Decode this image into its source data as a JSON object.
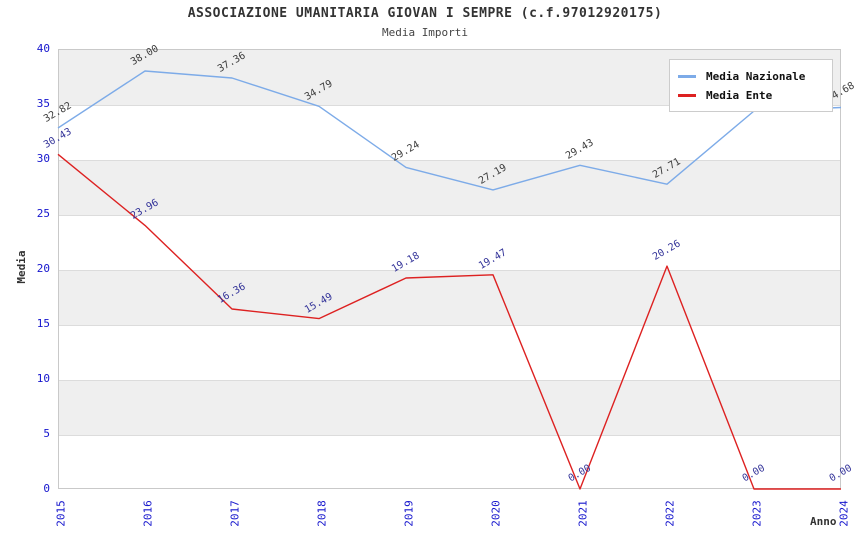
{
  "chart_data": {
    "type": "line",
    "title": "ASSOCIAZIONE UMANITARIA GIOVAN I SEMPRE (c.f.97012920175)",
    "subtitle": "Media Importi",
    "xlabel": "Anno",
    "ylabel": "Media",
    "ylim": [
      0,
      40
    ],
    "ytick_step": 5,
    "grid": "horizontal-bands-alternating-gray-white",
    "legend_position": "top-right",
    "categories": [
      "2015",
      "2016",
      "2017",
      "2018",
      "2019",
      "2020",
      "2021",
      "2022",
      "2023",
      "2024"
    ],
    "series": [
      {
        "name": "Media Nazionale",
        "color": "#7dabe8",
        "label_color": "#3c3c3c",
        "values": [
          32.82,
          38.0,
          37.36,
          34.79,
          29.24,
          27.19,
          29.43,
          27.71,
          34.36,
          34.68
        ]
      },
      {
        "name": "Media Ente",
        "color": "#dd2121",
        "label_color": "#333399",
        "values": [
          30.43,
          23.96,
          16.36,
          15.49,
          19.18,
          19.47,
          0.0,
          20.26,
          0.0,
          0.0
        ]
      }
    ]
  },
  "colors": {
    "axis_text": "#1515cd",
    "band_gray": "#efefef",
    "plot_border": "#c9c9c9",
    "gridline": "#dcdcdc"
  }
}
